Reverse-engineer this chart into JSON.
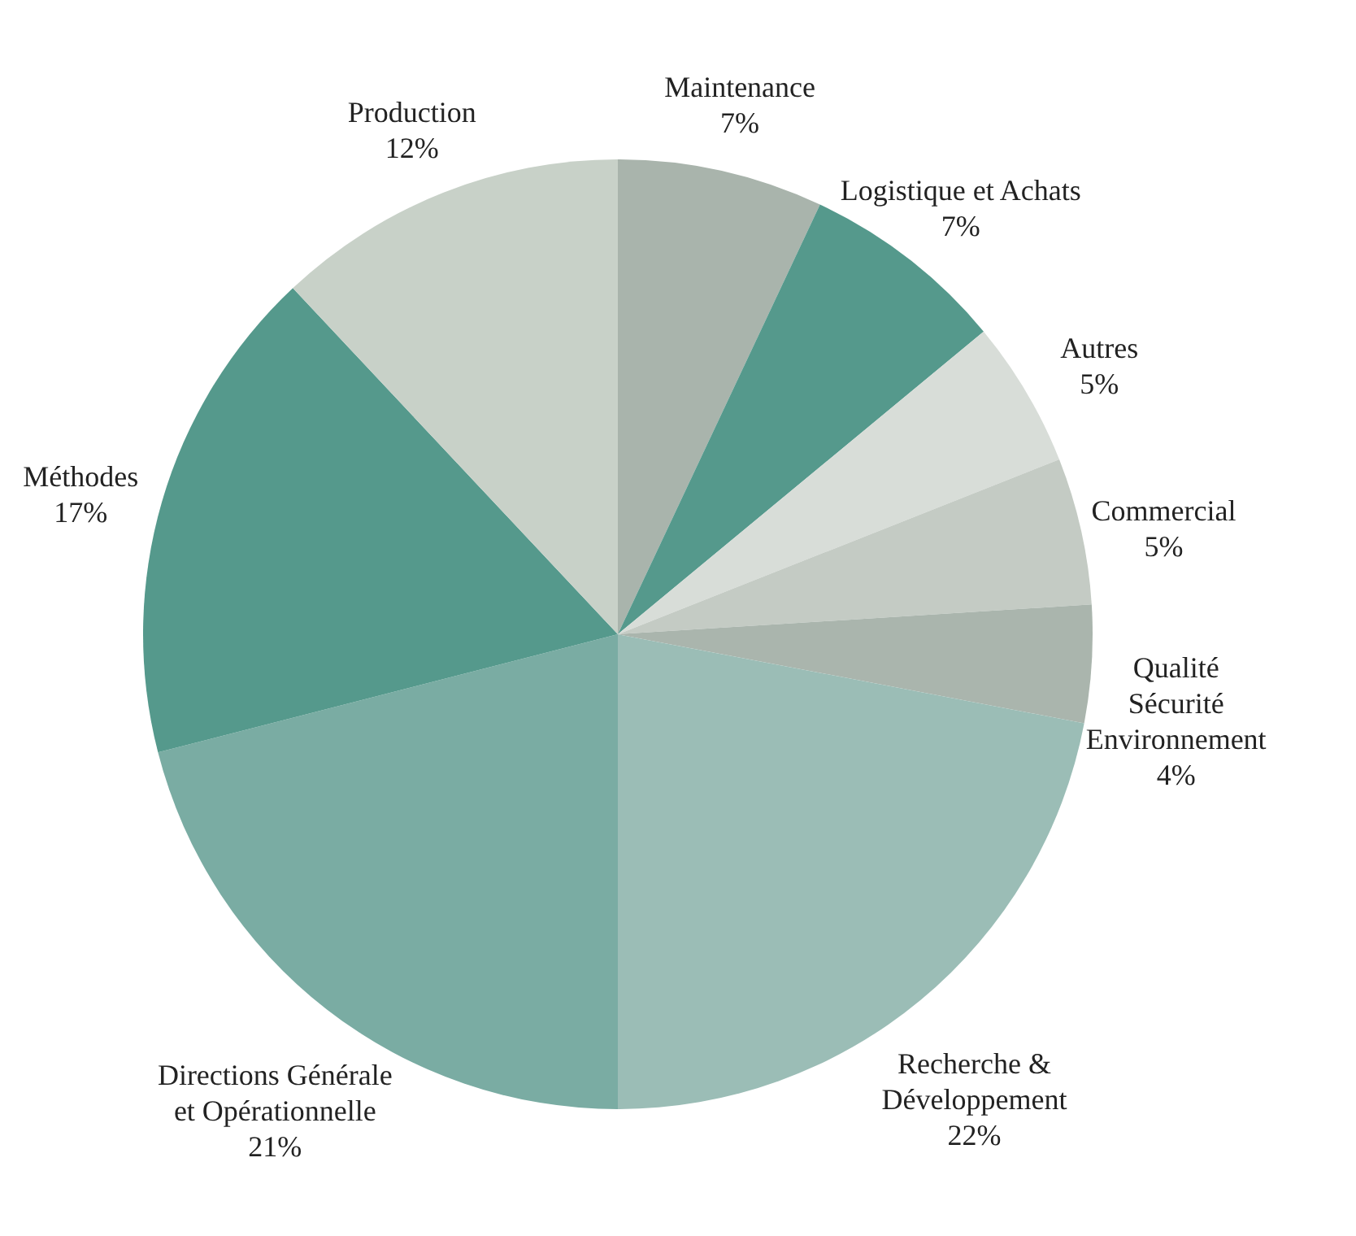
{
  "chart_data": {
    "type": "pie",
    "categories": [
      "Maintenance",
      "Logistique et Achats",
      "Autres",
      "Commercial",
      "Qualité\nSécurité\nEnvironnement",
      "Recherche &\nDéveloppement",
      "Directions Générale\net Opérationnelle",
      "Méthodes",
      "Production"
    ],
    "values": [
      7,
      7,
      5,
      5,
      4,
      22,
      21,
      17,
      12
    ],
    "value_labels": [
      "7%",
      "7%",
      "5%",
      "5%",
      "4%",
      "22%",
      "21%",
      "17%",
      "12%"
    ],
    "colors": [
      "#a9b4ac",
      "#55998c",
      "#d8ddd8",
      "#c4cbc4",
      "#aab5ad",
      "#9bbdb6",
      "#7aaca3",
      "#55998c",
      "#c8d1c8"
    ]
  }
}
